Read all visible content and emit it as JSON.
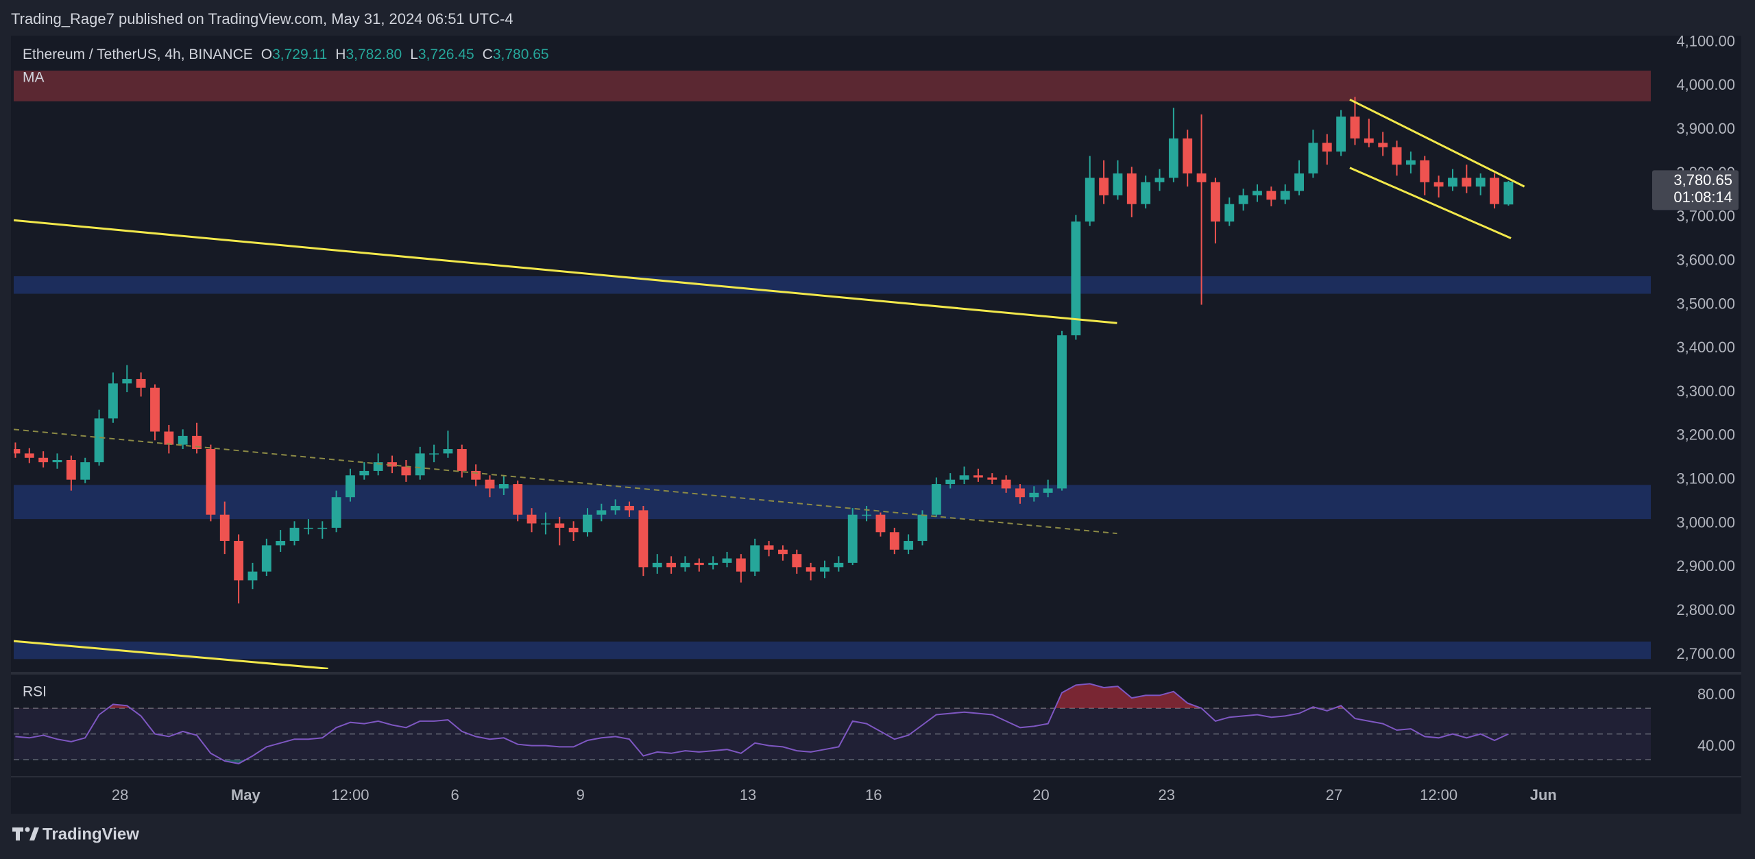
{
  "header": {
    "published": "Trading_Rage7 published on TradingView.com, May 31, 2024 06:51 UTC-4"
  },
  "footer": {
    "brand": "TradingView"
  },
  "chart_data": {
    "type": "candlestick",
    "symbol": "Ethereum / TetherUS, 4h, BINANCE",
    "ohlc_field_names": [
      "O",
      "H",
      "L",
      "C"
    ],
    "ohlc_value_labels": [
      "3,729.11",
      "3,782.80",
      "3,726.45",
      "3,780.65"
    ],
    "indicator": "MA",
    "up_color": "#26a69a",
    "down_color": "#ef5350",
    "ylim": [
      2667,
      4115
    ],
    "yticks": [
      {
        "value": 2700,
        "label": "2,700.00"
      },
      {
        "value": 2800,
        "label": "2,800.00"
      },
      {
        "value": 2900,
        "label": "2,900.00"
      },
      {
        "value": 3000,
        "label": "3,000.00"
      },
      {
        "value": 3100,
        "label": "3,100.00"
      },
      {
        "value": 3200,
        "label": "3,200.00"
      },
      {
        "value": 3300,
        "label": "3,300.00"
      },
      {
        "value": 3400,
        "label": "3,400.00"
      },
      {
        "value": 3500,
        "label": "3,500.00"
      },
      {
        "value": 3600,
        "label": "3,600.00"
      },
      {
        "value": 3700,
        "label": "3,700.00"
      },
      {
        "value": 3800,
        "label": "3,800.00"
      },
      {
        "value": 3900,
        "label": "3,900.00"
      },
      {
        "value": 4000,
        "label": "4,000.00"
      },
      {
        "value": 4100,
        "label": "4,100.00"
      }
    ],
    "xlim": [
      -0.12,
      117.2
    ],
    "xticks": [
      {
        "value": 7.5,
        "label": "28"
      },
      {
        "value": 16.5,
        "label": "May"
      },
      {
        "value": 24,
        "label": "12:00"
      },
      {
        "value": 31.5,
        "label": "6"
      },
      {
        "value": 40.5,
        "label": "9"
      },
      {
        "value": 52.5,
        "label": "13"
      },
      {
        "value": 61.5,
        "label": "16"
      },
      {
        "value": 73.5,
        "label": "20"
      },
      {
        "value": 82.5,
        "label": "23"
      },
      {
        "value": 94.5,
        "label": "27"
      },
      {
        "value": 102,
        "label": "12:00"
      },
      {
        "value": 109.5,
        "label": "Jun"
      }
    ],
    "last_price_label": "3,780.65",
    "countdown": "01:08:14",
    "zones": [
      {
        "color": "#672b35",
        "range": [
          3965,
          4035
        ]
      },
      {
        "color": "#1d3166",
        "range": [
          3525,
          3565
        ]
      },
      {
        "color": "#1d3166",
        "range": [
          3010,
          3088
        ]
      },
      {
        "color": "#1d3166",
        "range": [
          2690,
          2730
        ]
      }
    ],
    "lines": [
      {
        "color": "#f2e84b",
        "style": "solid",
        "points": [
          [
            -0.12,
            3693
          ],
          [
            78.95,
            3458
          ]
        ]
      },
      {
        "color": "#f2e84b",
        "style": "solid",
        "points": [
          [
            -0.12,
            2731
          ],
          [
            22.41,
            2668
          ]
        ]
      },
      {
        "color": "#f2e84b",
        "style": "solid",
        "points": [
          [
            95.63,
            3969
          ],
          [
            108.14,
            3770
          ]
        ]
      },
      {
        "color": "#f2e84b",
        "style": "solid",
        "points": [
          [
            95.63,
            3813
          ],
          [
            107.18,
            3652
          ]
        ]
      },
      {
        "color": "#8c8a45",
        "style": "dashed",
        "points": [
          [
            -0.12,
            3215
          ],
          [
            78.95,
            2977
          ]
        ]
      }
    ],
    "ohlc": [
      [
        3170,
        3185,
        3150,
        3160
      ],
      [
        3160,
        3172,
        3138,
        3150
      ],
      [
        3150,
        3165,
        3128,
        3140
      ],
      [
        3140,
        3160,
        3125,
        3145
      ],
      [
        3145,
        3155,
        3075,
        3100
      ],
      [
        3100,
        3150,
        3092,
        3140
      ],
      [
        3140,
        3260,
        3132,
        3240
      ],
      [
        3240,
        3345,
        3230,
        3320
      ],
      [
        3320,
        3362,
        3300,
        3330
      ],
      [
        3330,
        3345,
        3290,
        3310
      ],
      [
        3310,
        3318,
        3190,
        3210
      ],
      [
        3210,
        3225,
        3160,
        3180
      ],
      [
        3180,
        3215,
        3170,
        3200
      ],
      [
        3200,
        3230,
        3160,
        3170
      ],
      [
        3170,
        3180,
        3005,
        3020
      ],
      [
        3020,
        3050,
        2930,
        2960
      ],
      [
        2960,
        2975,
        2817,
        2870
      ],
      [
        2870,
        2910,
        2850,
        2890
      ],
      [
        2890,
        2965,
        2880,
        2950
      ],
      [
        2950,
        2985,
        2935,
        2960
      ],
      [
        2960,
        3005,
        2950,
        2990
      ],
      [
        2990,
        3010,
        2975,
        2990
      ],
      [
        2990,
        3005,
        2965,
        2990
      ],
      [
        2990,
        3075,
        2980,
        3060
      ],
      [
        3060,
        3125,
        3050,
        3110
      ],
      [
        3110,
        3140,
        3100,
        3120
      ],
      [
        3120,
        3160,
        3110,
        3140
      ],
      [
        3140,
        3155,
        3115,
        3130
      ],
      [
        3130,
        3145,
        3095,
        3110
      ],
      [
        3110,
        3175,
        3100,
        3160
      ],
      [
        3160,
        3180,
        3140,
        3160
      ],
      [
        3160,
        3212,
        3150,
        3170
      ],
      [
        3170,
        3180,
        3105,
        3120
      ],
      [
        3120,
        3135,
        3085,
        3100
      ],
      [
        3100,
        3110,
        3060,
        3080
      ],
      [
        3080,
        3110,
        3065,
        3090
      ],
      [
        3090,
        3098,
        3005,
        3020
      ],
      [
        3020,
        3035,
        2980,
        3000
      ],
      [
        3000,
        3025,
        2975,
        3000
      ],
      [
        3000,
        3015,
        2950,
        2990
      ],
      [
        2990,
        3005,
        2960,
        2980
      ],
      [
        2980,
        3035,
        2970,
        3020
      ],
      [
        3020,
        3045,
        3005,
        3030
      ],
      [
        3030,
        3055,
        3020,
        3040
      ],
      [
        3040,
        3050,
        3015,
        3030
      ],
      [
        3030,
        3040,
        2880,
        2900
      ],
      [
        2900,
        2930,
        2885,
        2910
      ],
      [
        2910,
        2925,
        2885,
        2900
      ],
      [
        2900,
        2925,
        2890,
        2910
      ],
      [
        2910,
        2920,
        2890,
        2905
      ],
      [
        2905,
        2925,
        2895,
        2910
      ],
      [
        2910,
        2935,
        2900,
        2920
      ],
      [
        2920,
        2930,
        2865,
        2890
      ],
      [
        2890,
        2965,
        2880,
        2950
      ],
      [
        2950,
        2960,
        2925,
        2940
      ],
      [
        2940,
        2950,
        2915,
        2930
      ],
      [
        2930,
        2940,
        2885,
        2900
      ],
      [
        2900,
        2910,
        2870,
        2890
      ],
      [
        2890,
        2915,
        2875,
        2900
      ],
      [
        2900,
        2925,
        2890,
        2910
      ],
      [
        2910,
        3035,
        2905,
        3020
      ],
      [
        3020,
        3040,
        3005,
        3020
      ],
      [
        3020,
        3025,
        2970,
        2980
      ],
      [
        2980,
        2990,
        2930,
        2940
      ],
      [
        2940,
        2975,
        2930,
        2960
      ],
      [
        2960,
        3030,
        2950,
        3020
      ],
      [
        3020,
        3105,
        3015,
        3090
      ],
      [
        3090,
        3115,
        3080,
        3100
      ],
      [
        3100,
        3130,
        3090,
        3110
      ],
      [
        3110,
        3125,
        3095,
        3105
      ],
      [
        3105,
        3115,
        3090,
        3100
      ],
      [
        3100,
        3110,
        3070,
        3080
      ],
      [
        3080,
        3090,
        3045,
        3060
      ],
      [
        3060,
        3085,
        3050,
        3070
      ],
      [
        3070,
        3100,
        3060,
        3080
      ],
      [
        3080,
        3440,
        3075,
        3430
      ],
      [
        3430,
        3705,
        3420,
        3690
      ],
      [
        3690,
        3840,
        3680,
        3790
      ],
      [
        3790,
        3830,
        3730,
        3750
      ],
      [
        3750,
        3830,
        3740,
        3800
      ],
      [
        3800,
        3815,
        3700,
        3730
      ],
      [
        3730,
        3795,
        3720,
        3780
      ],
      [
        3780,
        3810,
        3760,
        3790
      ],
      [
        3790,
        3950,
        3780,
        3880
      ],
      [
        3880,
        3900,
        3770,
        3800
      ],
      [
        3800,
        3935,
        3500,
        3780
      ],
      [
        3780,
        3790,
        3640,
        3690
      ],
      [
        3690,
        3745,
        3680,
        3730
      ],
      [
        3730,
        3765,
        3715,
        3750
      ],
      [
        3750,
        3775,
        3735,
        3760
      ],
      [
        3760,
        3770,
        3725,
        3740
      ],
      [
        3740,
        3775,
        3730,
        3760
      ],
      [
        3760,
        3830,
        3750,
        3800
      ],
      [
        3800,
        3900,
        3790,
        3870
      ],
      [
        3870,
        3890,
        3820,
        3850
      ],
      [
        3850,
        3945,
        3840,
        3930
      ],
      [
        3930,
        3975,
        3865,
        3880
      ],
      [
        3880,
        3925,
        3860,
        3870
      ],
      [
        3870,
        3895,
        3840,
        3860
      ],
      [
        3860,
        3875,
        3795,
        3820
      ],
      [
        3820,
        3850,
        3800,
        3830
      ],
      [
        3830,
        3840,
        3750,
        3780
      ],
      [
        3780,
        3795,
        3745,
        3770
      ],
      [
        3770,
        3810,
        3760,
        3790
      ],
      [
        3790,
        3820,
        3755,
        3770
      ],
      [
        3770,
        3800,
        3750,
        3790
      ],
      [
        3790,
        3800,
        3720,
        3730
      ],
      [
        3729.11,
        3782.8,
        3726.45,
        3780.65
      ]
    ],
    "rsi": {
      "name": "RSI",
      "color": "#7e57c2",
      "ylim": [
        20,
        94
      ],
      "yticks": [
        {
          "value": 80,
          "label": "80.00"
        },
        {
          "value": 40,
          "label": "40.00"
        }
      ],
      "levels": [
        70,
        50,
        30
      ],
      "values": [
        48,
        47,
        49,
        46,
        44,
        47,
        65,
        73,
        72,
        64,
        50,
        48,
        52,
        49,
        35,
        29,
        27,
        33,
        40,
        43,
        46,
        46,
        47,
        55,
        59,
        58,
        60,
        57,
        55,
        60,
        60,
        61,
        52,
        48,
        46,
        47,
        42,
        41,
        41,
        40,
        40,
        45,
        47,
        48,
        46,
        33,
        36,
        35,
        37,
        36,
        37,
        38,
        35,
        43,
        41,
        40,
        37,
        36,
        38,
        40,
        60,
        58,
        52,
        46,
        49,
        57,
        65,
        66,
        67,
        66,
        65,
        60,
        55,
        56,
        58,
        82,
        88,
        89,
        86,
        87,
        78,
        80,
        80,
        83,
        74,
        70,
        60,
        63,
        64,
        65,
        63,
        64,
        66,
        71,
        68,
        72,
        62,
        60,
        58,
        53,
        54,
        48,
        47,
        50,
        47,
        50,
        45,
        50
      ]
    }
  }
}
